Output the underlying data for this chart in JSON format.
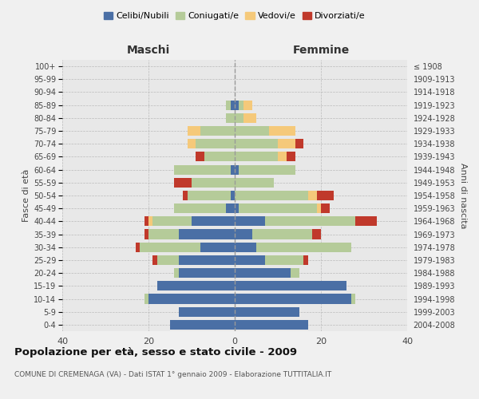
{
  "age_groups": [
    "0-4",
    "5-9",
    "10-14",
    "15-19",
    "20-24",
    "25-29",
    "30-34",
    "35-39",
    "40-44",
    "45-49",
    "50-54",
    "55-59",
    "60-64",
    "65-69",
    "70-74",
    "75-79",
    "80-84",
    "85-89",
    "90-94",
    "95-99",
    "100+"
  ],
  "birth_years": [
    "2004-2008",
    "1999-2003",
    "1994-1998",
    "1989-1993",
    "1984-1988",
    "1979-1983",
    "1974-1978",
    "1969-1973",
    "1964-1968",
    "1959-1963",
    "1954-1958",
    "1949-1953",
    "1944-1948",
    "1939-1943",
    "1934-1938",
    "1929-1933",
    "1924-1928",
    "1919-1923",
    "1914-1918",
    "1909-1913",
    "≤ 1908"
  ],
  "maschi": {
    "celibi": [
      15,
      13,
      20,
      18,
      13,
      13,
      8,
      13,
      10,
      2,
      1,
      0,
      1,
      0,
      0,
      0,
      0,
      1,
      0,
      0,
      0
    ],
    "coniugati": [
      0,
      0,
      1,
      0,
      1,
      5,
      14,
      7,
      9,
      12,
      10,
      10,
      13,
      7,
      9,
      8,
      2,
      1,
      0,
      0,
      0
    ],
    "vedovi": [
      0,
      0,
      0,
      0,
      0,
      0,
      0,
      0,
      1,
      0,
      0,
      0,
      0,
      0,
      2,
      3,
      0,
      0,
      0,
      0,
      0
    ],
    "divorziati": [
      0,
      0,
      0,
      0,
      0,
      1,
      1,
      1,
      1,
      0,
      1,
      4,
      0,
      2,
      0,
      0,
      0,
      0,
      0,
      0,
      0
    ]
  },
  "femmine": {
    "nubili": [
      17,
      15,
      27,
      26,
      13,
      7,
      5,
      4,
      7,
      1,
      0,
      0,
      1,
      0,
      0,
      0,
      0,
      1,
      0,
      0,
      0
    ],
    "coniugate": [
      0,
      0,
      1,
      0,
      2,
      9,
      22,
      14,
      21,
      18,
      17,
      9,
      13,
      10,
      10,
      8,
      2,
      1,
      0,
      0,
      0
    ],
    "vedove": [
      0,
      0,
      0,
      0,
      0,
      0,
      0,
      0,
      0,
      1,
      2,
      0,
      0,
      2,
      4,
      6,
      3,
      2,
      0,
      0,
      0
    ],
    "divorziate": [
      0,
      0,
      0,
      0,
      0,
      1,
      0,
      2,
      5,
      2,
      4,
      0,
      0,
      2,
      2,
      0,
      0,
      0,
      0,
      0,
      0
    ]
  },
  "colors": {
    "celibi_nubili": "#4a6fa5",
    "coniugati": "#b5cb99",
    "vedovi": "#f5c97a",
    "divorziati": "#c0392b"
  },
  "title": "Popolazione per età, sesso e stato civile - 2009",
  "subtitle": "COMUNE DI CREMENAGA (VA) - Dati ISTAT 1° gennaio 2009 - Elaborazione TUTTITALIA.IT",
  "xlabel_left": "Maschi",
  "xlabel_right": "Femmine",
  "ylabel_left": "Fasce di età",
  "ylabel_right": "Anni di nascita",
  "xlim": 40,
  "bar_height": 0.75
}
